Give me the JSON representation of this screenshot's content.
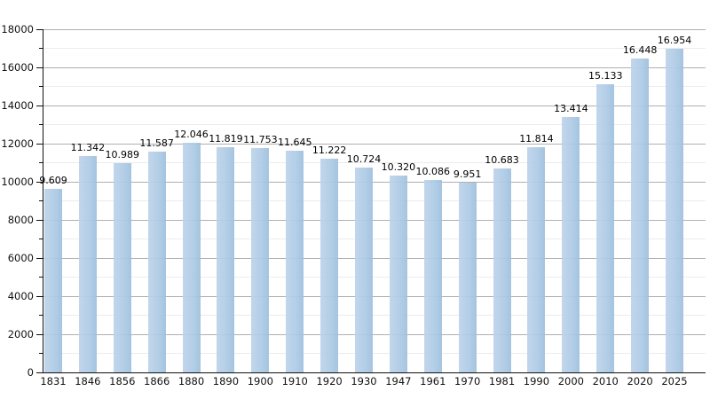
{
  "chart_title": "",
  "chart_data": {
    "type": "bar",
    "title": "",
    "xlabel": "",
    "ylabel": "",
    "categories": [
      "1831",
      "1846",
      "1856",
      "1866",
      "1880",
      "1890",
      "1900",
      "1910",
      "1920",
      "1930",
      "1947",
      "1961",
      "1970",
      "1981",
      "1990",
      "2000",
      "2010",
      "2020",
      "2025"
    ],
    "values": [
      9609,
      11342,
      10989,
      11587,
      12046,
      11819,
      11753,
      11645,
      11222,
      10724,
      10320,
      10086,
      9951,
      10683,
      11814,
      13414,
      15133,
      16448,
      16954
    ],
    "value_labels": [
      "9.609",
      "11.342",
      "10.989",
      "11.587",
      "12.046",
      "11.819",
      "11.753",
      "11.645",
      "11.222",
      "10.724",
      "10.320",
      "10.086",
      "9.951",
      "10.683",
      "11.814",
      "13.414",
      "15.133",
      "16.448",
      "16.954"
    ],
    "ylim": [
      0,
      18000
    ],
    "ytick_major_step": 2000,
    "ytick_minor_step": 1000,
    "ytick_labels": [
      "0",
      "2000",
      "4000",
      "6000",
      "8000",
      "10000",
      "12000",
      "14000",
      "16000",
      "18000"
    ],
    "grid": "horizontal, major + faint minor",
    "legend": "none",
    "colors": {
      "bar_fill": "#aecbe6",
      "bar_fill_light_edge": "#bdd3ea",
      "bar_fill_dark_edge": "#9fc0de",
      "gridline_major": "#b0b0b0",
      "gridline_minor": "#ececec",
      "axis": "#111111",
      "tick_text": "#111111",
      "value_text": "#000000"
    }
  }
}
